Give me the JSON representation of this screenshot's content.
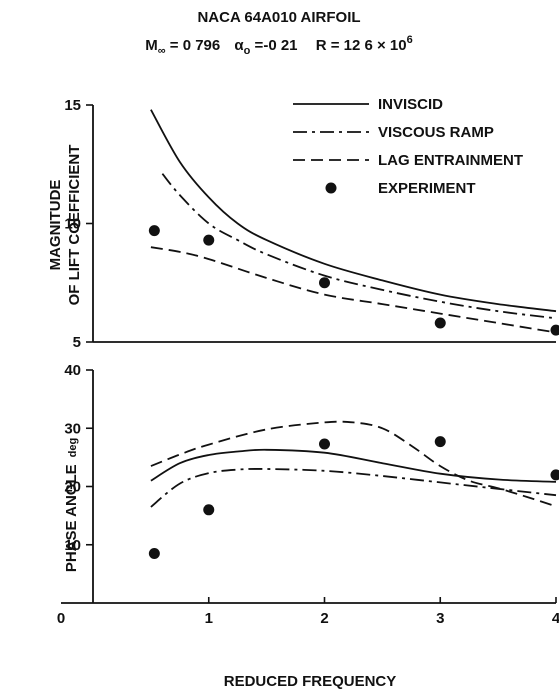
{
  "title": {
    "line1": "NACA 64A010 AIRFOIL",
    "m_label": "M",
    "m_sub": "∞",
    "m_rest": " = 0 796",
    "a_label": "α",
    "a_sub": "o",
    "a_rest": " =-0 21",
    "r_label": "R = 12 6 × 10",
    "r_exp": "6"
  },
  "legend": [
    {
      "label": "INVISCID",
      "style": "solid"
    },
    {
      "label": "VISCOUS RAMP",
      "style": "dashdot"
    },
    {
      "label": "LAG ENTRAINMENT",
      "style": "dashed"
    },
    {
      "label": "EXPERIMENT",
      "style": "marker"
    }
  ],
  "xaxis": {
    "label": "REDUCED FREQUENCY",
    "ticks": [
      "0",
      "1",
      "2",
      "3",
      "4"
    ],
    "xlim": [
      0,
      4
    ]
  },
  "chart_data": [
    {
      "type": "line",
      "ylabel_1": "MAGNITUDE",
      "ylabel_2": "OF LIFT COEFFICIENT",
      "ylim": [
        5,
        15
      ],
      "yticks": [
        "5",
        "10",
        "15"
      ],
      "series": [
        {
          "name": "INVISCID",
          "style": "solid",
          "x": [
            0.5,
            0.75,
            1.0,
            1.25,
            1.5,
            2.0,
            2.5,
            3.0,
            3.5,
            4.0
          ],
          "y": [
            14.8,
            12.6,
            11.1,
            10.0,
            9.3,
            8.3,
            7.6,
            7.0,
            6.6,
            6.3
          ]
        },
        {
          "name": "VISCOUS RAMP",
          "style": "dashdot",
          "x": [
            0.6,
            0.75,
            1.0,
            1.25,
            1.5,
            2.0,
            2.5,
            3.0,
            3.5,
            4.0
          ],
          "y": [
            12.1,
            11.2,
            10.0,
            9.3,
            8.7,
            7.8,
            7.2,
            6.7,
            6.3,
            6.0
          ]
        },
        {
          "name": "LAG ENTRAINMENT",
          "style": "dashed",
          "x": [
            0.5,
            0.75,
            1.0,
            1.5,
            2.0,
            2.5,
            3.0,
            3.5,
            4.0
          ],
          "y": [
            9.0,
            8.8,
            8.5,
            7.7,
            7.0,
            6.6,
            6.2,
            5.8,
            5.4
          ]
        },
        {
          "name": "EXPERIMENT",
          "style": "marker",
          "x": [
            0.53,
            1.0,
            2.0,
            3.0,
            4.0
          ],
          "y": [
            9.7,
            9.3,
            7.5,
            5.8,
            5.5
          ]
        }
      ]
    },
    {
      "type": "line",
      "ylabel_1": "PHASE ANGLE",
      "ylabel_unit": "deg",
      "ylim": [
        0,
        40
      ],
      "yticks": [
        "10",
        "20",
        "30",
        "40"
      ],
      "series": [
        {
          "name": "INVISCID",
          "style": "solid",
          "x": [
            0.5,
            0.75,
            1.0,
            1.25,
            1.5,
            2.0,
            2.5,
            3.0,
            3.5,
            4.0
          ],
          "y": [
            21.0,
            24.0,
            25.4,
            26.0,
            26.3,
            25.8,
            24.0,
            22.2,
            21.2,
            20.8
          ]
        },
        {
          "name": "VISCOUS RAMP",
          "style": "dashdot",
          "x": [
            0.5,
            0.75,
            1.0,
            1.25,
            1.5,
            2.0,
            2.5,
            3.0,
            3.5,
            4.0
          ],
          "y": [
            16.5,
            20.5,
            22.3,
            22.9,
            23.0,
            22.7,
            21.8,
            20.7,
            19.6,
            18.5
          ]
        },
        {
          "name": "LAG ENTRAINMENT",
          "style": "dashed",
          "x": [
            0.5,
            0.75,
            1.0,
            1.5,
            2.0,
            2.25,
            2.5,
            2.75,
            3.0,
            3.25,
            3.5,
            3.75,
            4.0
          ],
          "y": [
            23.5,
            25.5,
            27.2,
            29.8,
            31.0,
            31.0,
            30.0,
            27.0,
            23.5,
            21.0,
            19.7,
            18.2,
            16.6
          ]
        },
        {
          "name": "EXPERIMENT",
          "style": "marker",
          "x": [
            0.53,
            1.0,
            2.0,
            3.0,
            4.0
          ],
          "y": [
            8.5,
            16.0,
            27.3,
            27.7,
            22.0
          ]
        }
      ]
    }
  ]
}
